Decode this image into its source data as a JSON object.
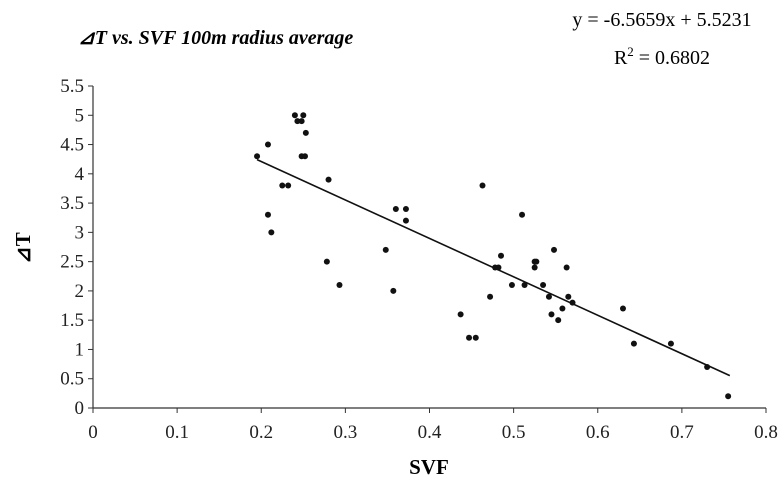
{
  "chart_data": {
    "type": "scatter",
    "title": "⊿T vs. SVF 100m radius average",
    "xlabel": "SVF",
    "ylabel": "⊿T",
    "xlim": [
      0,
      0.8
    ],
    "ylim": [
      0,
      5.5
    ],
    "xticks": [
      "0",
      "0.1",
      "0.2",
      "0.3",
      "0.4",
      "0.5",
      "0.6",
      "0.7",
      "0.8"
    ],
    "yticks": [
      "0",
      "0.5",
      "1",
      "1.5",
      "2",
      "2.5",
      "3",
      "3.5",
      "4",
      "4.5",
      "5",
      "5.5"
    ],
    "grid": false,
    "legend": "none",
    "trendline": {
      "equation": "y = -6.5659x + 5.5231",
      "r2_label": "R",
      "r2_value": " = 0.6802",
      "slope": -6.5659,
      "intercept": 5.5231,
      "x_range": [
        0.195,
        0.757
      ]
    },
    "points": [
      [
        0.195,
        4.3
      ],
      [
        0.208,
        4.5
      ],
      [
        0.208,
        3.3
      ],
      [
        0.212,
        3.0
      ],
      [
        0.225,
        3.8
      ],
      [
        0.232,
        3.8
      ],
      [
        0.24,
        5.0
      ],
      [
        0.243,
        4.9
      ],
      [
        0.248,
        4.9
      ],
      [
        0.25,
        5.0
      ],
      [
        0.248,
        4.3
      ],
      [
        0.252,
        4.3
      ],
      [
        0.253,
        4.7
      ],
      [
        0.28,
        3.9
      ],
      [
        0.278,
        2.5
      ],
      [
        0.293,
        2.1
      ],
      [
        0.348,
        2.7
      ],
      [
        0.357,
        2.0
      ],
      [
        0.36,
        3.4
      ],
      [
        0.372,
        3.4
      ],
      [
        0.372,
        3.2
      ],
      [
        0.437,
        1.6
      ],
      [
        0.447,
        1.2
      ],
      [
        0.455,
        1.2
      ],
      [
        0.463,
        3.8
      ],
      [
        0.472,
        1.9
      ],
      [
        0.478,
        2.4
      ],
      [
        0.482,
        2.4
      ],
      [
        0.485,
        2.6
      ],
      [
        0.498,
        2.1
      ],
      [
        0.51,
        3.3
      ],
      [
        0.513,
        2.1
      ],
      [
        0.525,
        2.5
      ],
      [
        0.525,
        2.4
      ],
      [
        0.527,
        2.5
      ],
      [
        0.535,
        2.1
      ],
      [
        0.542,
        1.9
      ],
      [
        0.545,
        1.6
      ],
      [
        0.548,
        2.7
      ],
      [
        0.553,
        1.5
      ],
      [
        0.558,
        1.7
      ],
      [
        0.563,
        2.4
      ],
      [
        0.565,
        1.9
      ],
      [
        0.57,
        1.8
      ],
      [
        0.63,
        1.7
      ],
      [
        0.643,
        1.1
      ],
      [
        0.687,
        1.1
      ],
      [
        0.73,
        0.7
      ],
      [
        0.755,
        0.2
      ]
    ]
  }
}
